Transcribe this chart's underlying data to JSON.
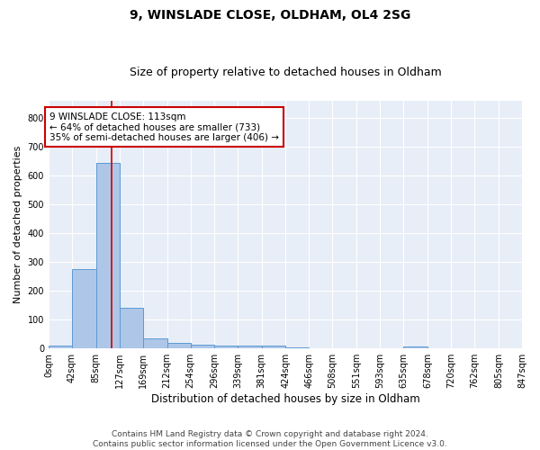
{
  "title1": "9, WINSLADE CLOSE, OLDHAM, OL4 2SG",
  "title2": "Size of property relative to detached houses in Oldham",
  "xlabel": "Distribution of detached houses by size in Oldham",
  "ylabel": "Number of detached properties",
  "bin_edges": [
    0,
    42,
    85,
    127,
    169,
    212,
    254,
    296,
    339,
    381,
    424,
    466,
    508,
    551,
    593,
    635,
    678,
    720,
    762,
    805,
    847
  ],
  "bar_heights": [
    10,
    275,
    645,
    140,
    35,
    20,
    13,
    11,
    10,
    10,
    5,
    0,
    0,
    0,
    0,
    8,
    0,
    0,
    0,
    0
  ],
  "bar_color": "#aec6e8",
  "bar_edge_color": "#5b9bd5",
  "property_size": 113,
  "vline_color": "#cc0000",
  "annotation_line1": "9 WINSLADE CLOSE: 113sqm",
  "annotation_line2": "← 64% of detached houses are smaller (733)",
  "annotation_line3": "35% of semi-detached houses are larger (406) →",
  "annotation_box_color": "#ffffff",
  "annotation_box_edge_color": "#cc0000",
  "ylim": [
    0,
    860
  ],
  "bg_color": "#e8eef7",
  "footer_text": "Contains HM Land Registry data © Crown copyright and database right 2024.\nContains public sector information licensed under the Open Government Licence v3.0.",
  "title1_fontsize": 10,
  "title2_fontsize": 9,
  "xlabel_fontsize": 8.5,
  "ylabel_fontsize": 8,
  "tick_fontsize": 7,
  "annotation_fontsize": 7.5,
  "footer_fontsize": 6.5
}
